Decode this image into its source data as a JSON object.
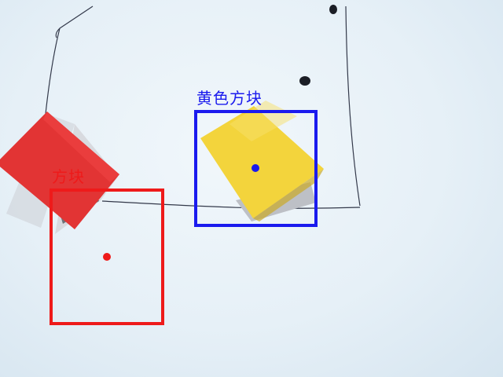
{
  "detections": [
    {
      "label": "黄色方块",
      "color": "#1a1aee",
      "object_color": "#f2d43c"
    },
    {
      "label": "方块",
      "color": "#ee1a1a",
      "object_color": "#e03535"
    }
  ]
}
